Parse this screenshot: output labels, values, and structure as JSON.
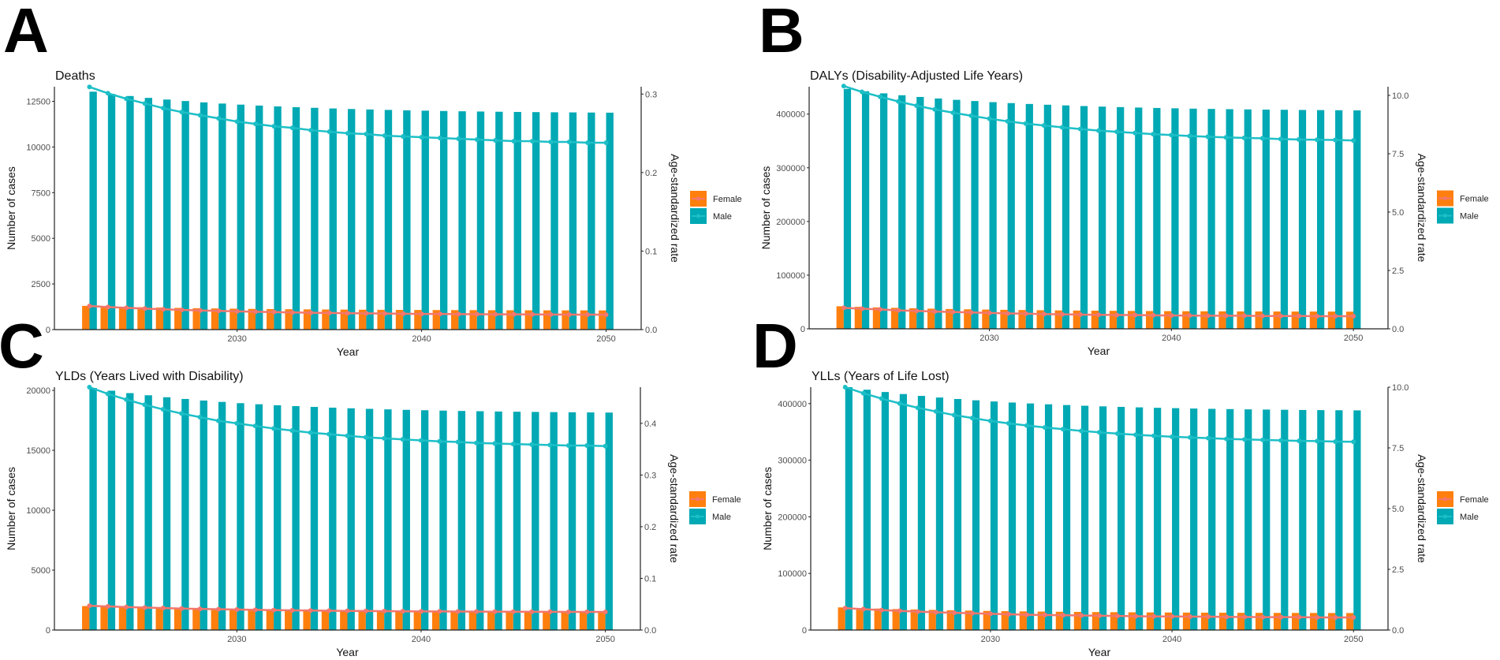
{
  "colors": {
    "female_bar": "#FF7F0E",
    "male_bar": "#00A9B4",
    "female_line": "#F2776E",
    "male_line": "#1DBFC7",
    "axis": "#222222"
  },
  "chart_data": [
    {
      "panel_label": "A",
      "type": "bar+line",
      "title": "Deaths",
      "xlabel": "Year",
      "ylabel": "Number of cases",
      "ylabel_right": "Age-standardized  rate",
      "x": [
        2022,
        2023,
        2024,
        2025,
        2026,
        2027,
        2028,
        2029,
        2030,
        2031,
        2032,
        2033,
        2034,
        2035,
        2036,
        2037,
        2038,
        2039,
        2040,
        2041,
        2042,
        2043,
        2044,
        2045,
        2046,
        2047,
        2048,
        2049,
        2050
      ],
      "xlim": [
        2020.1,
        2051.9
      ],
      "xticks": [
        "2030",
        "2040",
        "2050"
      ],
      "ylim": [
        0,
        13300
      ],
      "yticks": [
        "0",
        "2500",
        "5000",
        "7500",
        "10000",
        "12500"
      ],
      "ylim_right": [
        0,
        0.3093
      ],
      "yticks_right": [
        "0.0",
        "0.1",
        "0.2",
        "0.3"
      ],
      "legend": [
        "Female",
        "Male"
      ],
      "legend_position": "right",
      "series": [
        {
          "name": "Female",
          "kind": "bar",
          "values": [
            1300,
            1273,
            1248,
            1226,
            1206,
            1189,
            1173,
            1159,
            1146,
            1135,
            1125,
            1116,
            1108,
            1100,
            1094,
            1088,
            1083,
            1078,
            1074,
            1070,
            1067,
            1064,
            1061,
            1059,
            1057,
            1055,
            1053,
            1052,
            1050
          ]
        },
        {
          "name": "Male",
          "kind": "bar",
          "values": [
            13030,
            12904,
            12791,
            12690,
            12598,
            12517,
            12444,
            12379,
            12320,
            12269,
            12223,
            12181,
            12145,
            12110,
            12080,
            12054,
            12030,
            12008,
            11989,
            11972,
            11956,
            11943,
            11931,
            11920,
            11910,
            11901,
            11894,
            11887,
            11880
          ]
        },
        {
          "name": "Female",
          "kind": "line",
          "axis": "right",
          "values": [
            0.03,
            0.0288,
            0.0277,
            0.0267,
            0.0259,
            0.0251,
            0.0244,
            0.0238,
            0.0232,
            0.0227,
            0.0223,
            0.0219,
            0.0215,
            0.0212,
            0.0209,
            0.0207,
            0.0204,
            0.0202,
            0.02,
            0.0199,
            0.0197,
            0.0196,
            0.0195,
            0.0194,
            0.0193,
            0.0192,
            0.0191,
            0.0191,
            0.019
          ]
        },
        {
          "name": "Male",
          "kind": "line",
          "axis": "right",
          "values": [
            0.309,
            0.301,
            0.294,
            0.288,
            0.282,
            0.277,
            0.273,
            0.269,
            0.265,
            0.262,
            0.259,
            0.257,
            0.254,
            0.252,
            0.25,
            0.249,
            0.247,
            0.246,
            0.245,
            0.244,
            0.243,
            0.242,
            0.241,
            0.24,
            0.24,
            0.239,
            0.239,
            0.238,
            0.238
          ]
        }
      ]
    },
    {
      "panel_label": "B",
      "type": "bar+line",
      "title": "DALYs (Disability-Adjusted Life Years)",
      "xlabel": "Year",
      "ylabel": "Number of cases",
      "ylabel_right": "Age-standardized  rate",
      "x": [
        2022,
        2023,
        2024,
        2025,
        2026,
        2027,
        2028,
        2029,
        2030,
        2031,
        2032,
        2033,
        2034,
        2035,
        2036,
        2037,
        2038,
        2039,
        2040,
        2041,
        2042,
        2043,
        2044,
        2045,
        2046,
        2047,
        2048,
        2049,
        2050
      ],
      "xlim": [
        2020.1,
        2051.9
      ],
      "xticks": [
        "2030",
        "2040",
        "2050"
      ],
      "ylim": [
        0,
        451000
      ],
      "yticks": [
        "0",
        "100000",
        "200000",
        "300000",
        "400000"
      ],
      "ylim_right": [
        0,
        10.37
      ],
      "yticks_right": [
        "0.0",
        "2.5",
        "5.0",
        "7.5",
        "10.0"
      ],
      "legend": [
        "Female",
        "Male"
      ],
      "legend_position": "right",
      "series": [
        {
          "name": "Female",
          "kind": "bar",
          "values": [
            42000,
            40900,
            39920,
            39040,
            38240,
            37540,
            36900,
            36340,
            35830,
            35380,
            34980,
            34620,
            34300,
            34000,
            33740,
            33510,
            33300,
            33110,
            32950,
            32800,
            32660,
            32550,
            32440,
            32350,
            32260,
            32180,
            32120,
            32060,
            32000
          ]
        },
        {
          "name": "Male",
          "kind": "bar",
          "values": [
            447000,
            442600,
            438680,
            435160,
            431960,
            429160,
            426600,
            424360,
            422320,
            420520,
            418920,
            417480,
            416200,
            415000,
            413960,
            413040,
            412200,
            411440,
            410800,
            410200,
            409640,
            409200,
            408760,
            408400,
            408040,
            407720,
            407480,
            407240,
            407000
          ]
        },
        {
          "name": "Female",
          "kind": "line",
          "axis": "right",
          "values": [
            0.9,
            0.86,
            0.83,
            0.79,
            0.77,
            0.74,
            0.72,
            0.7,
            0.68,
            0.66,
            0.65,
            0.63,
            0.62,
            0.61,
            0.6,
            0.59,
            0.59,
            0.58,
            0.57,
            0.57,
            0.56,
            0.56,
            0.56,
            0.55,
            0.55,
            0.55,
            0.54,
            0.54,
            0.54
          ]
        },
        {
          "name": "Male",
          "kind": "line",
          "axis": "right",
          "values": [
            10.4,
            10.15,
            9.94,
            9.74,
            9.56,
            9.4,
            9.26,
            9.13,
            9.0,
            8.89,
            8.79,
            8.71,
            8.63,
            8.56,
            8.49,
            8.44,
            8.39,
            8.34,
            8.3,
            8.26,
            8.23,
            8.2,
            8.18,
            8.16,
            8.13,
            8.11,
            8.1,
            8.09,
            8.07
          ]
        }
      ]
    },
    {
      "panel_label": "C",
      "type": "bar+line",
      "title": "YLDs (Years Lived with Disability)",
      "xlabel": "Year",
      "ylabel": "Number of cases",
      "ylabel_right": "Age-standardized  rate",
      "x": [
        2022,
        2023,
        2024,
        2025,
        2026,
        2027,
        2028,
        2029,
        2030,
        2031,
        2032,
        2033,
        2034,
        2035,
        2036,
        2037,
        2038,
        2039,
        2040,
        2041,
        2042,
        2043,
        2044,
        2045,
        2046,
        2047,
        2048,
        2049,
        2050
      ],
      "xlim": [
        2020.1,
        2051.9
      ],
      "xticks": [
        "2030",
        "2040",
        "2050"
      ],
      "ylim": [
        0,
        20270
      ],
      "yticks": [
        "0",
        "5000",
        "10000",
        "15000",
        "20000"
      ],
      "ylim_right": [
        0,
        0.47
      ],
      "yticks_right": [
        "0.0",
        "0.1",
        "0.2",
        "0.3",
        "0.4"
      ],
      "legend": [
        "Female",
        "Male"
      ],
      "legend_position": "right",
      "series": [
        {
          "name": "Female",
          "kind": "bar",
          "values": [
            2000,
            1951,
            1906,
            1867,
            1831,
            1799,
            1771,
            1745,
            1722,
            1702,
            1684,
            1668,
            1654,
            1640,
            1628,
            1618,
            1609,
            1600,
            1593,
            1586,
            1580,
            1575,
            1570,
            1566,
            1562,
            1558,
            1555,
            1553,
            1550
          ]
        },
        {
          "name": "Male",
          "kind": "bar",
          "values": [
            20200,
            19975,
            19774,
            19593,
            19429,
            19286,
            19155,
            19040,
            18935,
            18843,
            18761,
            18687,
            18622,
            18560,
            18507,
            18460,
            18417,
            18378,
            18345,
            18314,
            18285,
            18263,
            18240,
            18222,
            18203,
            18187,
            18175,
            18162,
            18150
          ]
        },
        {
          "name": "Female",
          "kind": "line",
          "axis": "right",
          "values": [
            0.047,
            0.0457,
            0.0445,
            0.0434,
            0.0425,
            0.0416,
            0.0409,
            0.0402,
            0.0396,
            0.0391,
            0.0386,
            0.0381,
            0.0378,
            0.0374,
            0.0371,
            0.0368,
            0.0366,
            0.0363,
            0.0361,
            0.036,
            0.0358,
            0.0357,
            0.0355,
            0.0354,
            0.0353,
            0.0352,
            0.0351,
            0.0351,
            0.035
          ]
        },
        {
          "name": "Male",
          "kind": "line",
          "axis": "right",
          "values": [
            0.47,
            0.457,
            0.446,
            0.436,
            0.427,
            0.419,
            0.412,
            0.405,
            0.4,
            0.395,
            0.39,
            0.386,
            0.382,
            0.379,
            0.376,
            0.373,
            0.371,
            0.369,
            0.367,
            0.365,
            0.364,
            0.362,
            0.361,
            0.36,
            0.359,
            0.358,
            0.357,
            0.357,
            0.356
          ]
        }
      ]
    },
    {
      "panel_label": "D",
      "type": "bar+line",
      "title": "YLLs (Years of Life Lost)",
      "xlabel": "Year",
      "ylabel": "Number of cases",
      "ylabel_right": "Age-standardized  rate",
      "x": [
        2022,
        2023,
        2024,
        2025,
        2026,
        2027,
        2028,
        2029,
        2030,
        2031,
        2032,
        2033,
        2034,
        2035,
        2036,
        2037,
        2038,
        2039,
        2040,
        2041,
        2042,
        2043,
        2044,
        2045,
        2046,
        2047,
        2048,
        2049,
        2050
      ],
      "xlim": [
        2020.1,
        2051.9
      ],
      "xticks": [
        "2030",
        "2040",
        "2050"
      ],
      "ylim": [
        0,
        429000
      ],
      "yticks": [
        "0",
        "100000",
        "200000",
        "300000",
        "400000"
      ],
      "ylim_right": [
        0,
        10.0
      ],
      "yticks_right": [
        "0.0",
        "2.5",
        "5.0",
        "7.5",
        "10.0"
      ],
      "legend": [
        "Female",
        "Male"
      ],
      "legend_position": "right",
      "series": [
        {
          "name": "Female",
          "kind": "bar",
          "values": [
            40000,
            38900,
            37920,
            37040,
            36240,
            35540,
            34900,
            34340,
            33830,
            33380,
            32980,
            32620,
            32300,
            32000,
            31740,
            31510,
            31300,
            31110,
            30950,
            30800,
            30660,
            30550,
            30440,
            30350,
            30260,
            30180,
            30120,
            30060,
            30000
          ]
        },
        {
          "name": "Male",
          "kind": "bar",
          "values": [
            429000,
            424490,
            420470,
            416860,
            413580,
            410710,
            408090,
            405790,
            403700,
            401860,
            400220,
            398740,
            397430,
            396200,
            395130,
            394190,
            393330,
            392550,
            391900,
            391280,
            390710,
            390260,
            389800,
            389440,
            389070,
            388740,
            388490,
            388250,
            388000
          ]
        },
        {
          "name": "Female",
          "kind": "line",
          "axis": "right",
          "values": [
            0.9,
            0.86,
            0.82,
            0.79,
            0.76,
            0.73,
            0.71,
            0.69,
            0.67,
            0.65,
            0.63,
            0.62,
            0.61,
            0.6,
            0.59,
            0.58,
            0.57,
            0.56,
            0.56,
            0.55,
            0.55,
            0.54,
            0.54,
            0.53,
            0.53,
            0.53,
            0.52,
            0.52,
            0.52
          ]
        },
        {
          "name": "Male",
          "kind": "line",
          "axis": "right",
          "values": [
            10.0,
            9.75,
            9.53,
            9.33,
            9.15,
            9.0,
            8.85,
            8.73,
            8.61,
            8.51,
            8.42,
            8.34,
            8.27,
            8.2,
            8.14,
            8.09,
            8.04,
            8.0,
            7.96,
            7.93,
            7.9,
            7.87,
            7.85,
            7.83,
            7.81,
            7.79,
            7.78,
            7.76,
            7.75
          ]
        }
      ]
    }
  ]
}
